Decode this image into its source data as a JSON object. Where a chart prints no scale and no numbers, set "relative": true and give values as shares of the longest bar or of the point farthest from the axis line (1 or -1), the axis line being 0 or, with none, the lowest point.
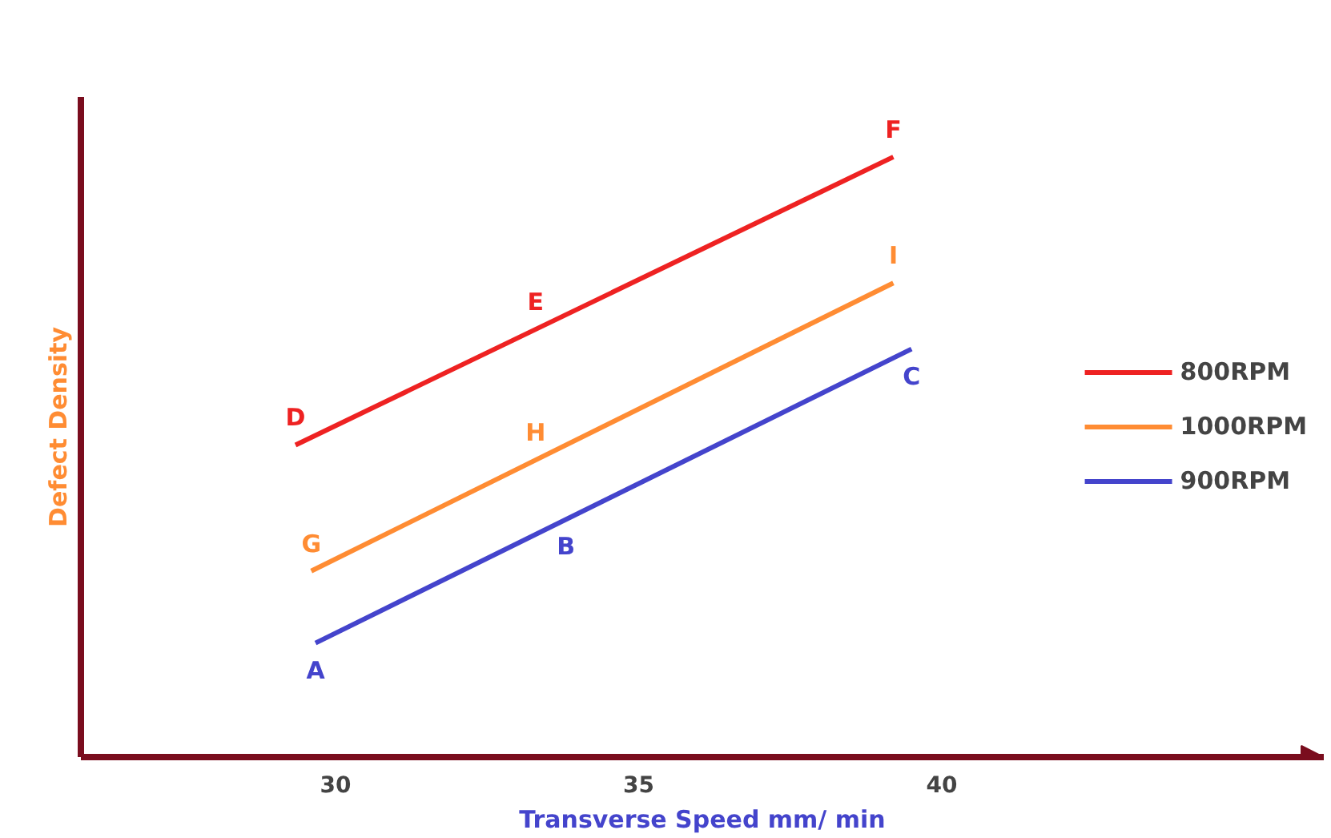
{
  "chart_data": {
    "type": "line",
    "relative": true,
    "xlabel": "Transverse Speed mm/ min",
    "ylabel": "Defect Density",
    "xlim": [
      25.8,
      46.3
    ],
    "xticks": [
      30,
      35,
      40
    ],
    "grid": false,
    "legend": "right",
    "marker": "none",
    "line_style": "solid",
    "series": [
      {
        "name": "800RPM",
        "color": "#ee2222",
        "x": [
          29.34,
          39.2
        ],
        "values": [
          0.52,
          1.0
        ]
      },
      {
        "name": "1000RPM",
        "color": "#ff8c33",
        "x": [
          29.6,
          39.2
        ],
        "values": [
          0.31,
          0.79
        ]
      },
      {
        "name": "900RPM",
        "color": "#4444cc",
        "x": [
          29.67,
          39.5
        ],
        "values": [
          0.19,
          0.68
        ]
      }
    ],
    "annotations": [
      {
        "text": "D",
        "x": 29.34,
        "y": 0.52
      },
      {
        "text": "E",
        "x": 33.3,
        "y": 0.713
      },
      {
        "text": "F",
        "x": 39.2,
        "y": 1.0
      },
      {
        "text": "G",
        "x": 29.6,
        "y": 0.31
      },
      {
        "text": "H",
        "x": 33.3,
        "y": 0.495
      },
      {
        "text": "I",
        "x": 39.2,
        "y": 0.79
      },
      {
        "text": "A",
        "x": 29.67,
        "y": 0.19
      },
      {
        "text": "B",
        "x": 33.8,
        "y": 0.396
      },
      {
        "text": "C",
        "x": 39.5,
        "y": 0.68
      }
    ]
  }
}
